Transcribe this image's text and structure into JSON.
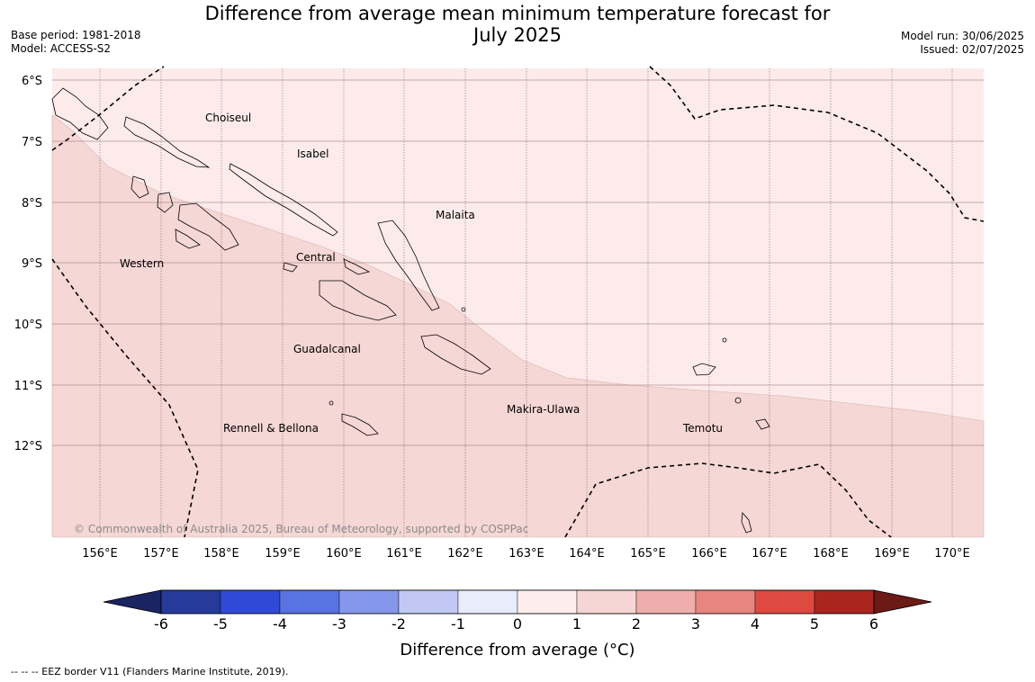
{
  "title": {
    "line1": "Difference from average mean minimum temperature forecast for",
    "line2": "July 2025"
  },
  "meta_left": {
    "base_period": "Base period: 1981-2018",
    "model": "Model: ACCESS-S2"
  },
  "meta_right": {
    "model_run": "Model run: 30/06/2025",
    "issued": "Issued: 02/07/2025"
  },
  "map": {
    "lat_labels": [
      "6°S",
      "7°S",
      "8°S",
      "9°S",
      "10°S",
      "11°S",
      "12°S"
    ],
    "lon_labels": [
      "156°E",
      "157°E",
      "158°E",
      "159°E",
      "160°E",
      "161°E",
      "162°E",
      "163°E",
      "164°E",
      "165°E",
      "166°E",
      "167°E",
      "168°E",
      "169°E",
      "170°E"
    ],
    "province_labels": [
      "Choiseul",
      "Isabel",
      "Malaita",
      "Western",
      "Central",
      "Guadalcanal",
      "Makira-Ulawa",
      "Rennell & Bellona",
      "Temotu"
    ],
    "copyright": "© Commonwealth of Australia 2025, Bureau of Meteorology, supported by COSPPac",
    "fill_colors": {
      "band_0_1": "#fcebea",
      "band_1_2": "#f5d7d5"
    }
  },
  "colorbar": {
    "ticks": [
      "-6",
      "-5",
      "-4",
      "-3",
      "-2",
      "-1",
      "0",
      "1",
      "2",
      "3",
      "4",
      "5",
      "6"
    ],
    "colors": [
      "#253a9a",
      "#2f4bd6",
      "#5873e2",
      "#8597ea",
      "#c0c8f3",
      "#e8ecfb",
      "#fdeeed",
      "#f6d6d4",
      "#efaeab",
      "#e8857f",
      "#dc4a40",
      "#a9261f"
    ],
    "under_color": "#1a2463",
    "over_color": "#6b1a15",
    "label": "Difference from average (°C)"
  },
  "footnote": "--  --  -- EEZ border V11 (Flanders Marine Institute, 2019)."
}
